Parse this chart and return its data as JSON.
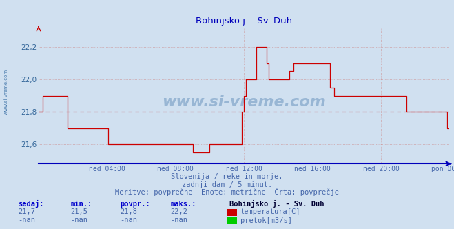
{
  "title": "Bohinjsko j. - Sv. Duh",
  "bg_color": "#d0e0f0",
  "plot_bg_color": "#d0e0f0",
  "line_color": "#cc0000",
  "avg_line_color": "#cc0000",
  "x_labels": [
    "ned 04:00",
    "ned 08:00",
    "ned 12:00",
    "ned 16:00",
    "ned 20:00",
    "pon 00:00"
  ],
  "x_ticks_norm": [
    0.1667,
    0.3333,
    0.5,
    0.6667,
    0.8333,
    1.0
  ],
  "ylim": [
    21.48,
    22.32
  ],
  "yticks": [
    21.6,
    21.8,
    22.0,
    22.2
  ],
  "ylabel_color": "#336699",
  "grid_color": "#cc8888",
  "avg_value": 21.8,
  "subtitle1": "Slovenija / reke in morje.",
  "subtitle2": "zadnji dan / 5 minut.",
  "subtitle3": "Meritve: povprečne  Enote: metrične  Črta: povprečje",
  "footer_color": "#4466aa",
  "watermark": "www.si-vreme.com",
  "legend_station": "Bohinjsko j. - Sv. Duh",
  "legend_temp": "temperatura[C]",
  "legend_flow": "pretok[m3/s]",
  "stats_headers": [
    "sedaj:",
    "min.:",
    "povpr.:",
    "maks.:"
  ],
  "stats_temp": [
    "21,7",
    "21,5",
    "21,8",
    "22,2"
  ],
  "stats_flow": [
    "-nan",
    "-nan",
    "-nan",
    "-nan"
  ],
  "temp_color": "#cc0000",
  "flow_color": "#00cc00",
  "temp_data_x": [
    0.0,
    0.007,
    0.01,
    0.02,
    0.03,
    0.04,
    0.05,
    0.06,
    0.065,
    0.07,
    0.08,
    0.09,
    0.1,
    0.11,
    0.12,
    0.13,
    0.14,
    0.15,
    0.16,
    0.165,
    0.17,
    0.18,
    0.19,
    0.2,
    0.21,
    0.22,
    0.23,
    0.24,
    0.25,
    0.26,
    0.27,
    0.28,
    0.29,
    0.3,
    0.31,
    0.32,
    0.33,
    0.34,
    0.35,
    0.36,
    0.365,
    0.37,
    0.375,
    0.38,
    0.39,
    0.4,
    0.41,
    0.415,
    0.42,
    0.43,
    0.44,
    0.45,
    0.46,
    0.47,
    0.48,
    0.49,
    0.495,
    0.5,
    0.505,
    0.51,
    0.515,
    0.52,
    0.525,
    0.53,
    0.535,
    0.54,
    0.545,
    0.55,
    0.555,
    0.56,
    0.565,
    0.57,
    0.58,
    0.59,
    0.6,
    0.61,
    0.62,
    0.63,
    0.635,
    0.64,
    0.65,
    0.66,
    0.67,
    0.675,
    0.68,
    0.69,
    0.7,
    0.71,
    0.72,
    0.73,
    0.74,
    0.75,
    0.76,
    0.77,
    0.78,
    0.79,
    0.8,
    0.81,
    0.82,
    0.83,
    0.84,
    0.85,
    0.86,
    0.87,
    0.88,
    0.89,
    0.895,
    0.9,
    0.91,
    0.92,
    0.93,
    0.94,
    0.95,
    0.96,
    0.97,
    0.98,
    0.99,
    0.995,
    1.0
  ],
  "temp_data_y": [
    21.8,
    21.8,
    21.9,
    21.9,
    21.9,
    21.9,
    21.9,
    21.9,
    21.9,
    21.7,
    21.7,
    21.7,
    21.7,
    21.7,
    21.7,
    21.7,
    21.7,
    21.7,
    21.7,
    21.7,
    21.6,
    21.6,
    21.6,
    21.6,
    21.6,
    21.6,
    21.6,
    21.6,
    21.6,
    21.6,
    21.6,
    21.6,
    21.6,
    21.6,
    21.6,
    21.6,
    21.6,
    21.6,
    21.6,
    21.6,
    21.6,
    21.6,
    21.55,
    21.55,
    21.55,
    21.55,
    21.55,
    21.6,
    21.6,
    21.6,
    21.6,
    21.6,
    21.6,
    21.6,
    21.6,
    21.6,
    21.8,
    21.9,
    22.0,
    22.0,
    22.0,
    22.0,
    22.0,
    22.2,
    22.2,
    22.2,
    22.2,
    22.2,
    22.1,
    22.0,
    22.0,
    22.0,
    22.0,
    22.0,
    22.0,
    22.05,
    22.1,
    22.1,
    22.1,
    22.1,
    22.1,
    22.1,
    22.1,
    22.1,
    22.1,
    22.1,
    22.1,
    21.95,
    21.9,
    21.9,
    21.9,
    21.9,
    21.9,
    21.9,
    21.9,
    21.9,
    21.9,
    21.9,
    21.9,
    21.9,
    21.9,
    21.9,
    21.9,
    21.9,
    21.9,
    21.9,
    21.8,
    21.8,
    21.8,
    21.8,
    21.8,
    21.8,
    21.8,
    21.8,
    21.8,
    21.8,
    21.8,
    21.7,
    21.7
  ]
}
